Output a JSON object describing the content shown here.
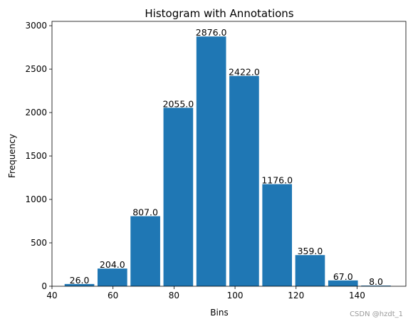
{
  "chart_data": {
    "type": "bar",
    "title": "Histogram with Annotations",
    "xlabel": "Bins",
    "ylabel": "Frequency",
    "xlim": [
      40,
      156
    ],
    "ylim": [
      0,
      3050
    ],
    "xticks": [
      40,
      60,
      80,
      100,
      120,
      140
    ],
    "yticks": [
      0,
      500,
      1000,
      1500,
      2000,
      2500,
      3000
    ],
    "bar_color": "#1f77b4",
    "bins": [
      {
        "start": 43.6,
        "end": 54.4,
        "value": 26,
        "label": "26.0"
      },
      {
        "start": 54.4,
        "end": 65.2,
        "value": 204,
        "label": "204.0"
      },
      {
        "start": 65.2,
        "end": 76.0,
        "value": 807,
        "label": "807.0"
      },
      {
        "start": 76.0,
        "end": 86.8,
        "value": 2055,
        "label": "2055.0"
      },
      {
        "start": 86.8,
        "end": 97.6,
        "value": 2876,
        "label": "2876.0"
      },
      {
        "start": 97.6,
        "end": 108.4,
        "value": 2422,
        "label": "2422.0"
      },
      {
        "start": 108.4,
        "end": 119.2,
        "value": 1176,
        "label": "1176.0"
      },
      {
        "start": 119.2,
        "end": 130.0,
        "value": 359,
        "label": "359.0"
      },
      {
        "start": 130.0,
        "end": 140.8,
        "value": 67,
        "label": "67.0"
      },
      {
        "start": 140.8,
        "end": 151.6,
        "value": 8,
        "label": "8.0"
      }
    ]
  },
  "watermark": "CSDN @hzdt_1"
}
